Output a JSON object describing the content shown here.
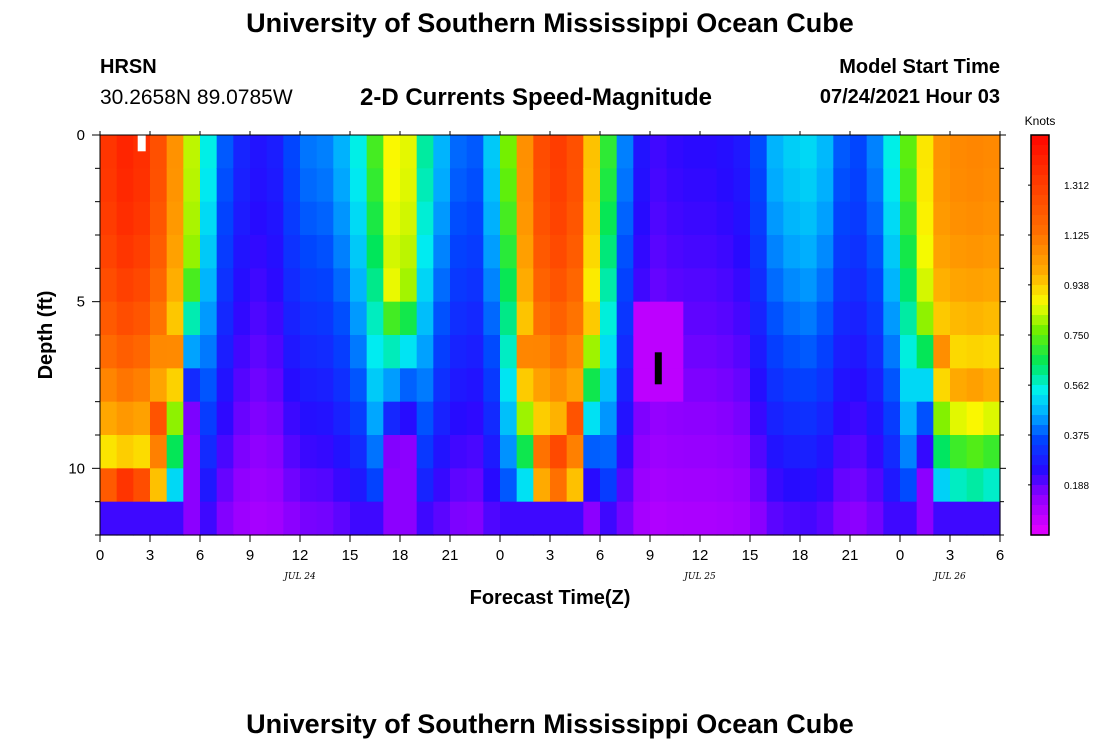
{
  "header": {
    "title": "University of Southern Mississippi Ocean Cube",
    "station": "HRSN",
    "coordinates": "30.2658N  89.0785W",
    "subtitle": "2-D Currents Speed-Magnitude",
    "model_start_label": "Model Start Time",
    "model_start_value": "07/24/2021 Hour 03"
  },
  "footer": {
    "title": "University of Southern Mississippi Ocean Cube"
  },
  "chart_data": {
    "type": "heatmap",
    "title": "2-D Currents Speed-Magnitude",
    "xlabel": "Forecast Time(Z)",
    "ylabel": "Depth (ft)",
    "x_range_hours": [
      0,
      54
    ],
    "y_range_ft": [
      0,
      12
    ],
    "x_tick_labels": [
      "0",
      "3",
      "6",
      "9",
      "12",
      "15",
      "18",
      "21",
      "0",
      "3",
      "6",
      "9",
      "12",
      "15",
      "18",
      "21",
      "0",
      "3",
      "6"
    ],
    "date_labels": [
      {
        "text": "JUL 24",
        "hour": 12
      },
      {
        "text": "JUL 25",
        "hour": 36
      },
      {
        "text": "JUL 26",
        "hour": 51
      }
    ],
    "y_ticks": [
      0,
      5,
      10
    ],
    "colorbar": {
      "title": "Knots",
      "min": 0.0,
      "max": 1.5,
      "tick_labels": [
        "1.312",
        "1.125",
        "0.938",
        "0.750",
        "0.562",
        "0.375",
        "0.188"
      ],
      "tick_values": [
        1.312,
        1.125,
        0.938,
        0.75,
        0.562,
        0.375,
        0.188
      ]
    },
    "speed_field": {
      "description": "speed in knots over forecast hour (0-54) and depth (0-12 ft)",
      "time_step_hours": 1,
      "depth_rows": 12,
      "peaks": [
        {
          "hour": 2,
          "surface": 1.4,
          "bottom_extent_ft": 11.5
        },
        {
          "hour": 18,
          "surface": 0.9,
          "bottom_extent_ft": 8
        },
        {
          "hour": 27,
          "surface": 1.35,
          "bottom_extent_ft": 10
        },
        {
          "hour": 53,
          "surface": 1.15,
          "bottom_extent_ft": 6
        }
      ],
      "troughs": [
        {
          "hour": 9.5,
          "value": 0.12
        },
        {
          "hour": 22,
          "value": 0.2
        },
        {
          "hour": 33.5,
          "value": 0.06
        },
        {
          "hour": 46.5,
          "value": 0.12
        }
      ]
    },
    "markers": [
      {
        "color": "#ffffff",
        "hour": 2.5,
        "depth_ft": 0.25
      },
      {
        "color": "#000000",
        "hour": 33.5,
        "depth_ft": 7
      }
    ]
  }
}
